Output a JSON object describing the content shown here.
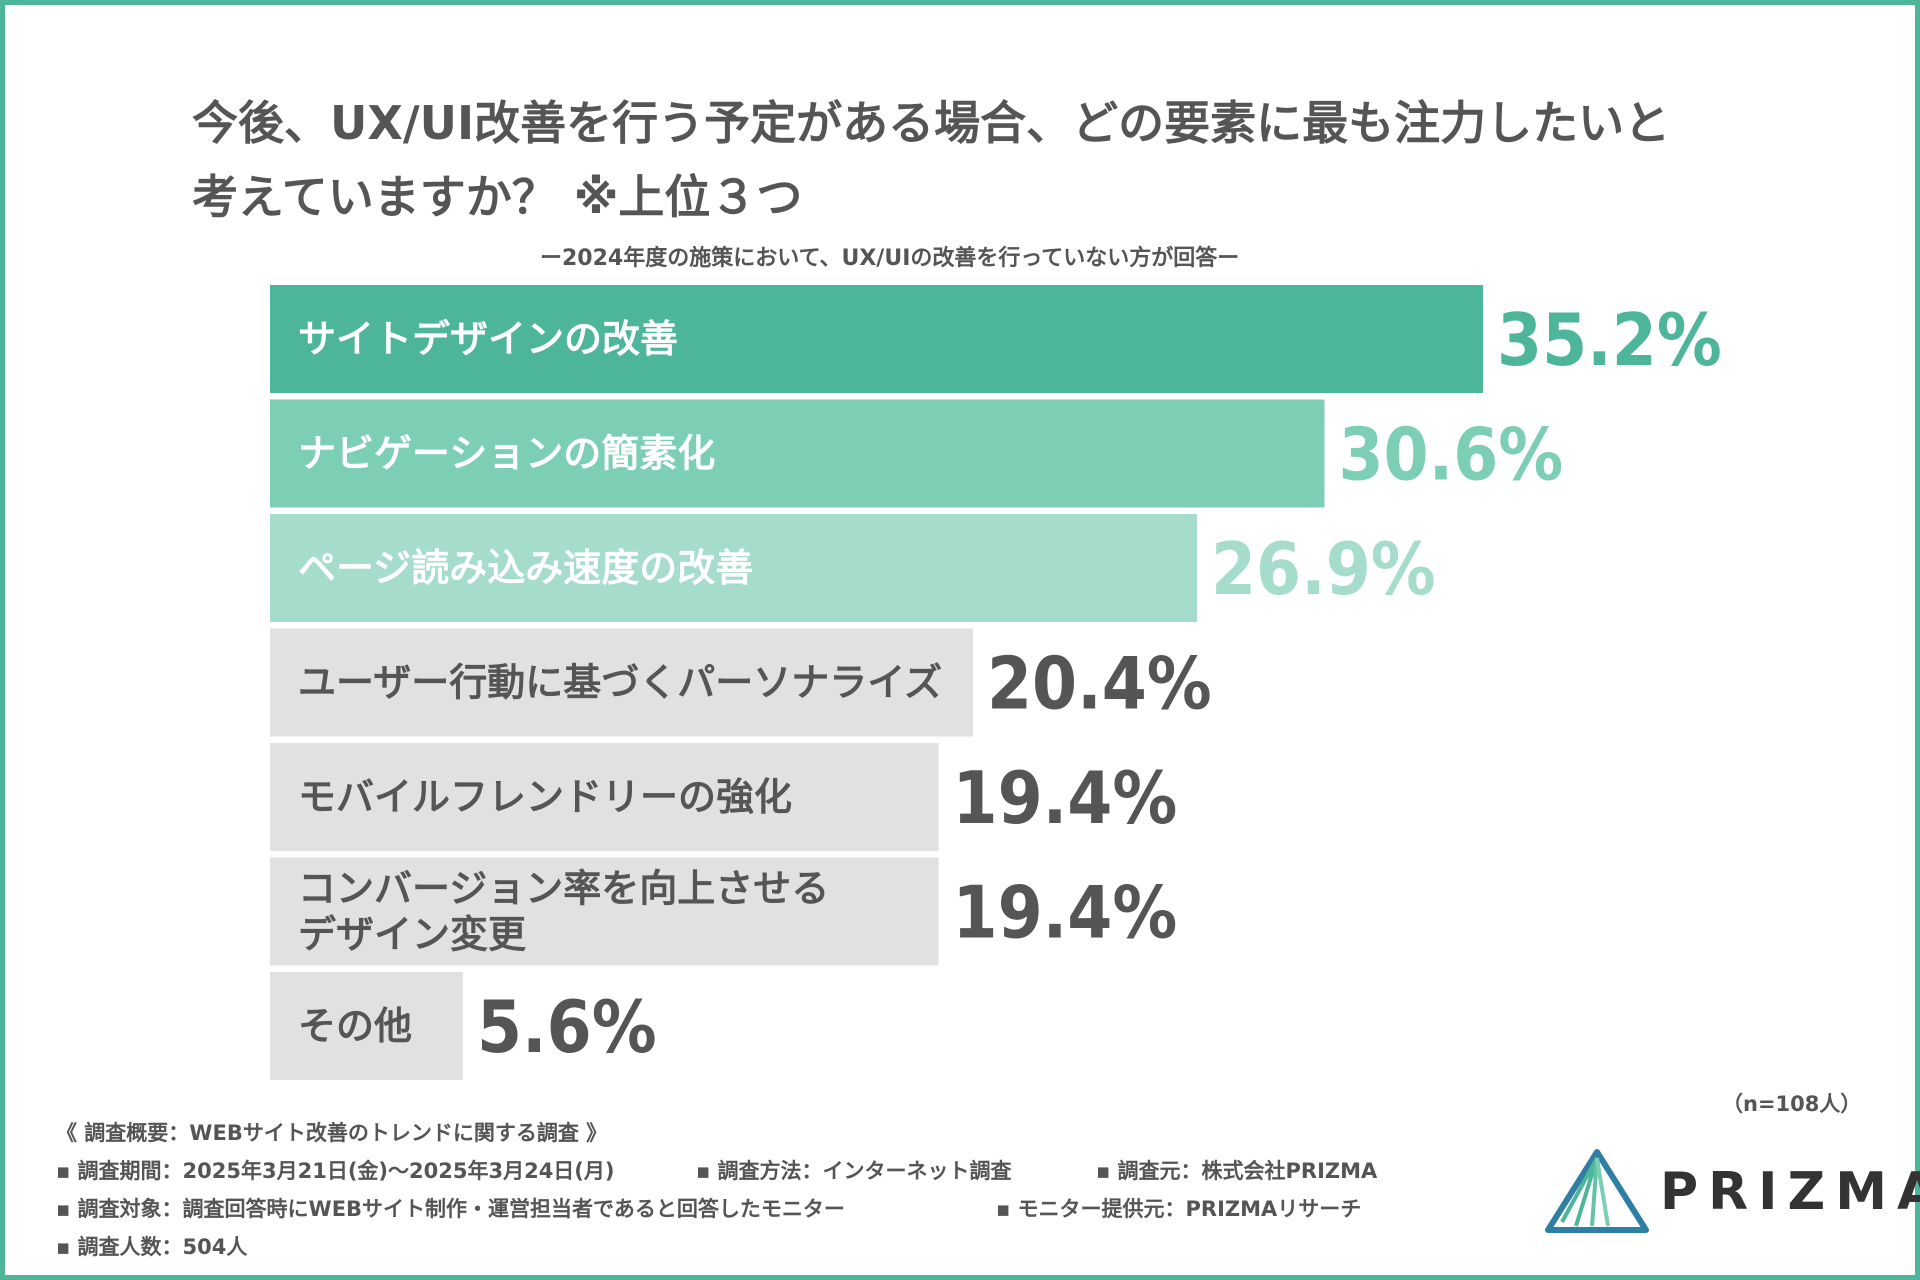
{
  "title": {
    "line1": "今後、UX/UI改善を行う予定がある場合、どの要素に最も注力したいと",
    "line2": "考えていますか？ ※上位３つ"
  },
  "subtitle": "ー2024年度の施策において、UX/UIの改善を行っていない方が回答ー",
  "colors": {
    "frame": "#4db59a",
    "top1": "#4db59a",
    "top2": "#7ccfb4",
    "top3": "#a6dccb",
    "rest_bar": "#e1e1e1",
    "rest_text": "#555555"
  },
  "chart_data": {
    "type": "bar",
    "orientation": "horizontal",
    "categories": [
      "サイトデザインの改善",
      "ナビゲーションの簡素化",
      "ページ読み込み速度の改善",
      "ユーザー行動に基づくパーソナライズ",
      "モバイルフレンドリーの強化",
      "コンバージョン率を向上させる\nデザイン変更",
      "その他"
    ],
    "values": [
      35.2,
      30.6,
      26.9,
      20.4,
      19.4,
      19.4,
      5.6
    ],
    "value_labels": [
      "35.2%",
      "30.6%",
      "26.9%",
      "20.4%",
      "19.4%",
      "19.4%",
      "5.6%"
    ],
    "unit": "%",
    "title": "今後、UX/UI改善を行う予定がある場合、どの要素に最も注力したいと考えていますか？ ※上位３つ",
    "xlabel": "",
    "ylabel": "",
    "xlim": [
      0,
      35.2
    ],
    "grid": false,
    "legend": "none"
  },
  "sample_note": "（n=108人）",
  "footer": {
    "heading": "《 調査概要：WEBサイト改善のトレンドに関する調査 》",
    "period": "▪ 調査期間：2025年3月21日(金)〜2025年3月24日(月)",
    "method": "▪ 調査方法：インターネット調査",
    "source": "▪ 調査元：株式会社PRIZMA",
    "target": "▪ 調査対象：調査回答時にWEBサイト制作・運営担当者であると回答したモニター",
    "provider": "▪ モニター提供元：PRIZMAリサーチ",
    "count": "▪ 調査人数：504人"
  },
  "logo": {
    "text": "PRIZMA",
    "icon": "prizma-triangle-icon"
  }
}
